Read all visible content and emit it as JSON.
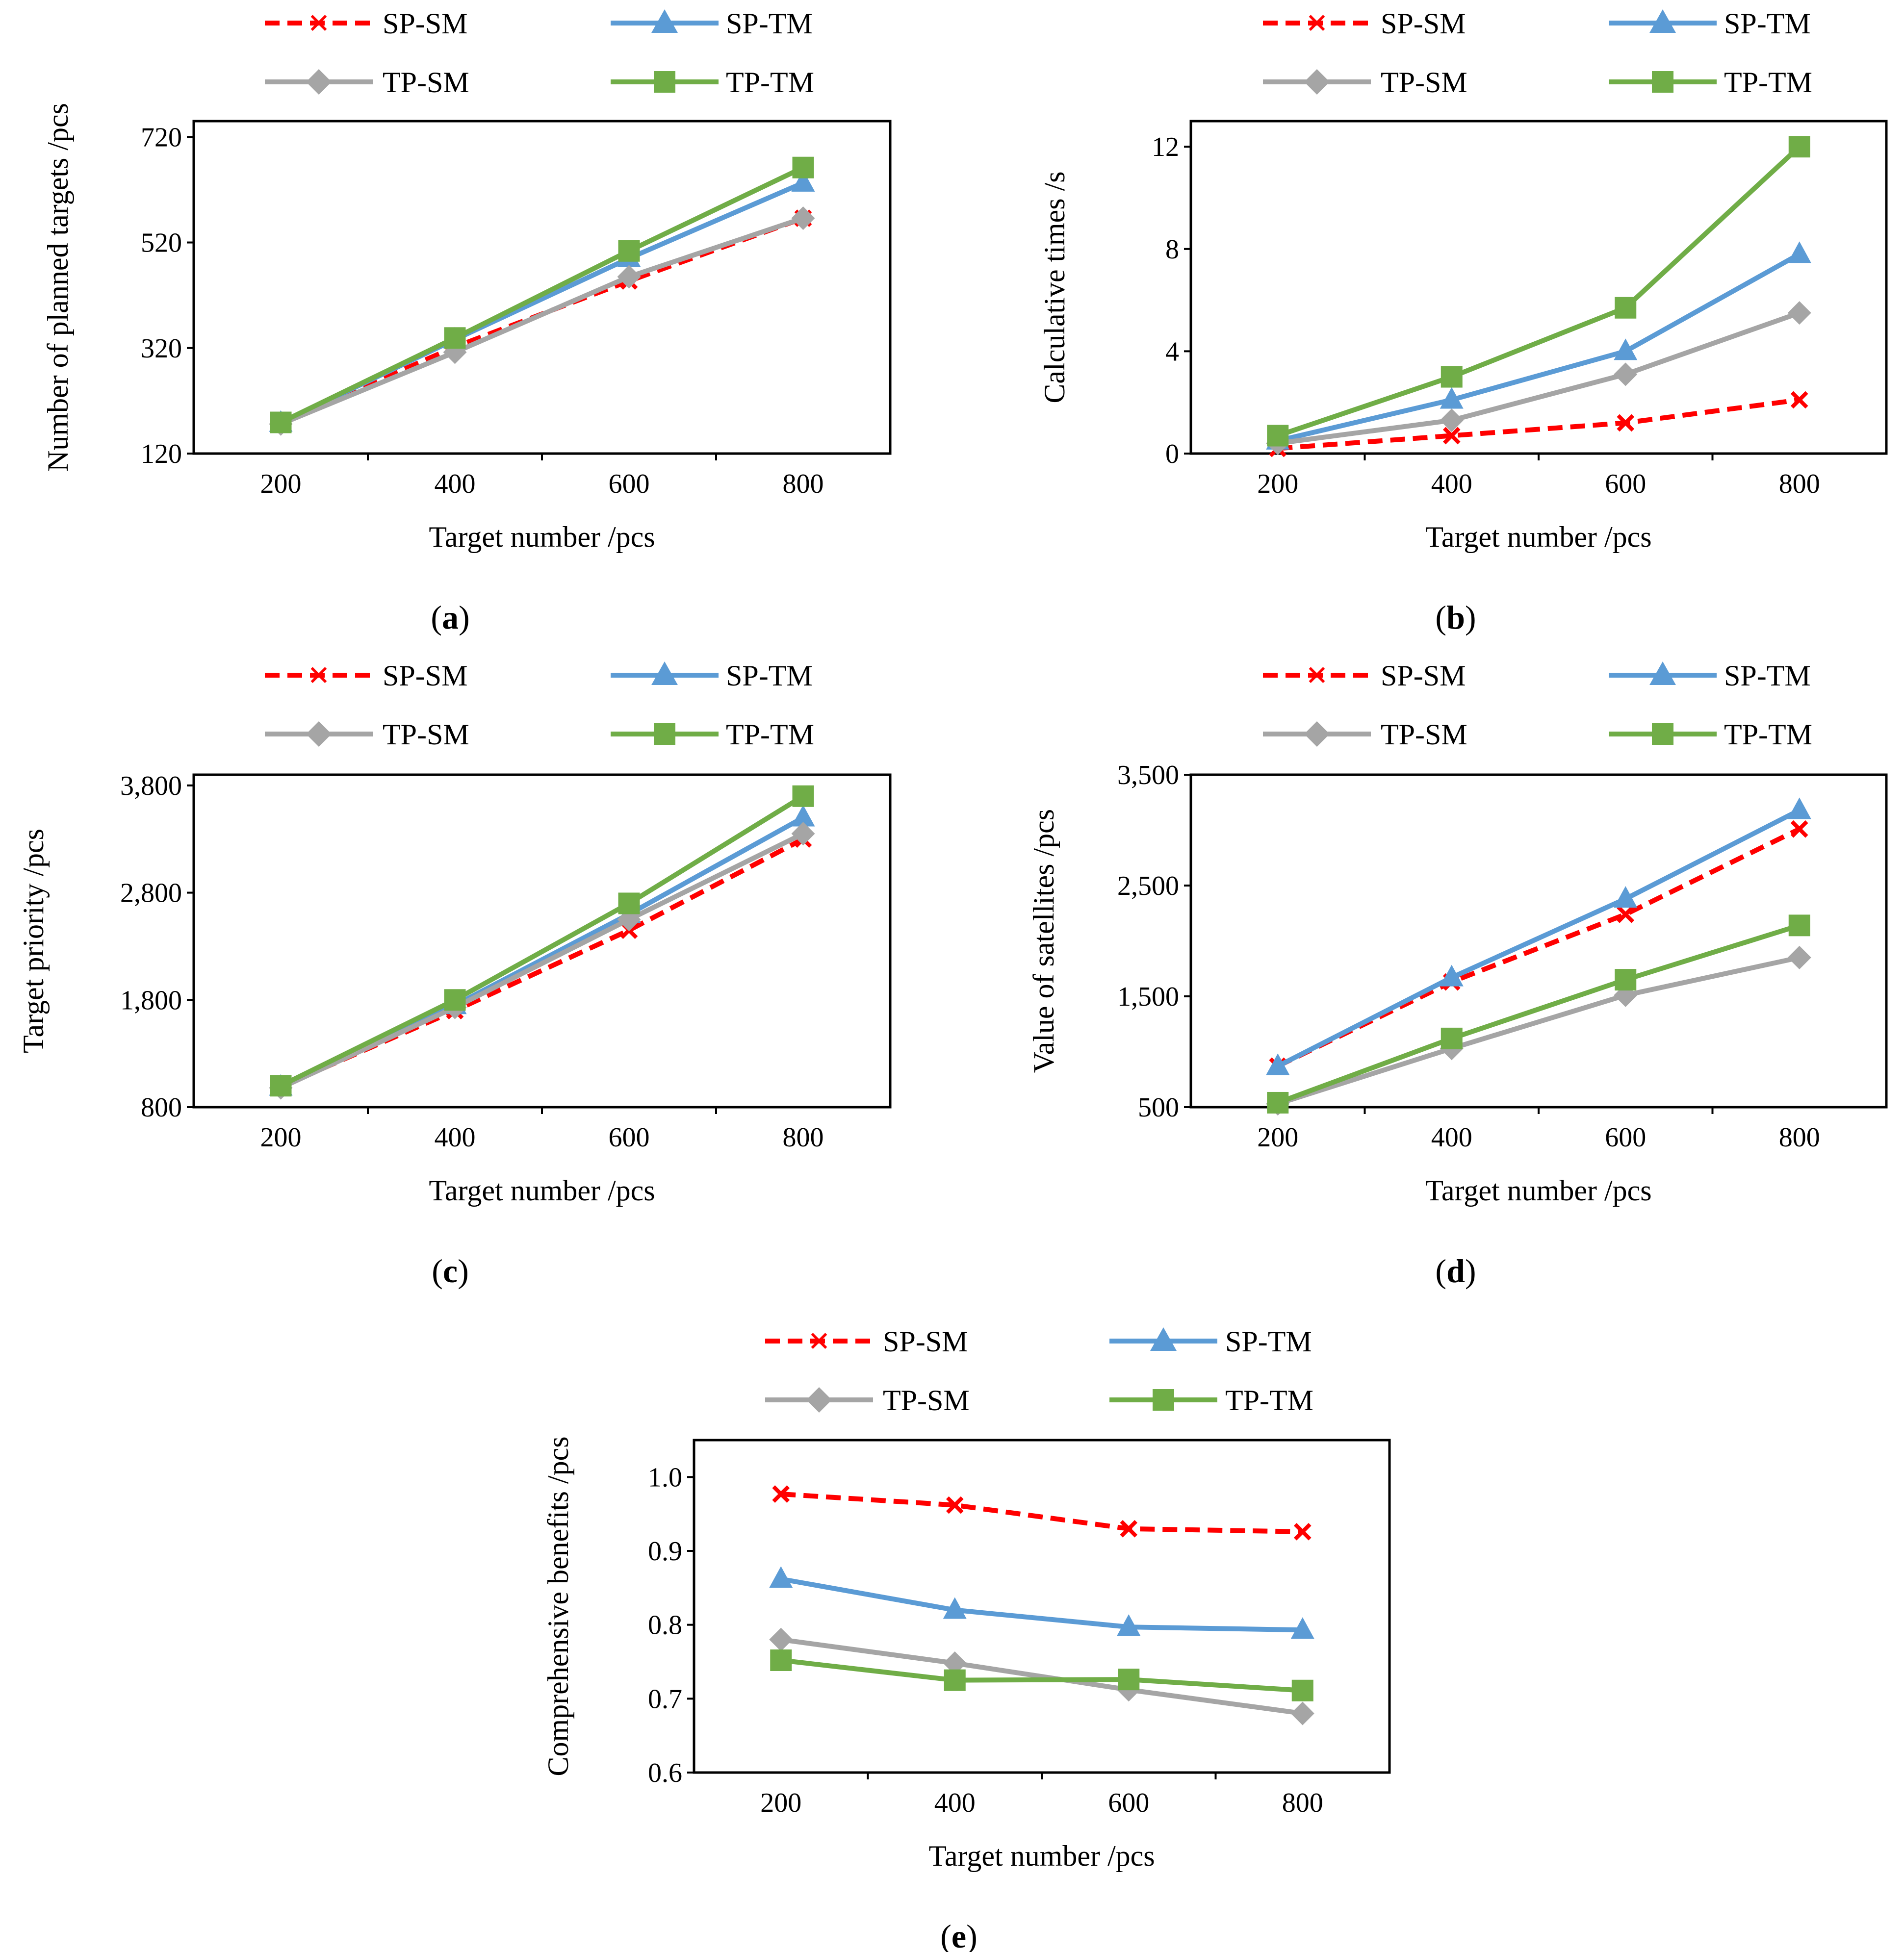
{
  "series_styles": {
    "SP-SM": {
      "color": "#FF0000",
      "dash": true,
      "marker": "x"
    },
    "SP-TM": {
      "color": "#5B9BD5",
      "dash": false,
      "marker": "triangle"
    },
    "TP-SM": {
      "color": "#A5A5A5",
      "dash": false,
      "marker": "diamond"
    },
    "TP-TM": {
      "color": "#70AD47",
      "dash": false,
      "marker": "square"
    }
  },
  "chart_data": [
    {
      "id": "a",
      "panel_label": "a",
      "type": "line",
      "xlabel": "Target number /pcs",
      "ylabel": "Number of planned targets /pcs",
      "x": [
        200,
        400,
        600,
        800
      ],
      "x_tick_labels": [
        "200",
        "400",
        "600",
        "800"
      ],
      "ylim": [
        120,
        750
      ],
      "y_ticks": [
        120,
        320,
        520,
        720
      ],
      "y_tick_labels": [
        "120",
        "320",
        "520",
        "720"
      ],
      "series": [
        {
          "name": "SP-SM",
          "values": [
            178,
            322,
            447,
            566
          ]
        },
        {
          "name": "SP-TM",
          "values": [
            178,
            336,
            490,
            633
          ]
        },
        {
          "name": "TP-SM",
          "values": [
            176,
            312,
            455,
            566
          ]
        },
        {
          "name": "TP-TM",
          "values": [
            179,
            339,
            504,
            662
          ]
        }
      ]
    },
    {
      "id": "b",
      "panel_label": "b",
      "type": "line",
      "xlabel": "Target number /pcs",
      "ylabel": "Calculative times /s",
      "x": [
        200,
        400,
        600,
        800
      ],
      "x_tick_labels": [
        "200",
        "400",
        "600",
        "800"
      ],
      "ylim": [
        0,
        13
      ],
      "y_ticks": [
        0,
        4,
        8,
        12
      ],
      "y_tick_labels": [
        "0",
        "4",
        "8",
        "12"
      ],
      "series": [
        {
          "name": "SP-SM",
          "values": [
            0.2,
            0.7,
            1.2,
            2.1
          ]
        },
        {
          "name": "SP-TM",
          "values": [
            0.5,
            2.1,
            4.0,
            7.8
          ]
        },
        {
          "name": "TP-SM",
          "values": [
            0.4,
            1.3,
            3.1,
            5.5
          ]
        },
        {
          "name": "TP-TM",
          "values": [
            0.7,
            3.0,
            5.7,
            12.0
          ]
        }
      ]
    },
    {
      "id": "c",
      "panel_label": "c",
      "type": "line",
      "xlabel": "Target number /pcs",
      "ylabel": "Target priority /pcs",
      "x": [
        200,
        400,
        600,
        800
      ],
      "x_tick_labels": [
        "200",
        "400",
        "600",
        "800"
      ],
      "ylim": [
        800,
        3900
      ],
      "y_ticks": [
        800,
        1800,
        2800,
        3800
      ],
      "y_tick_labels": [
        "800",
        "1,800",
        "2,800",
        "3,800"
      ],
      "series": [
        {
          "name": "SP-SM",
          "values": [
            990,
            1700,
            2450,
            3300
          ]
        },
        {
          "name": "SP-TM",
          "values": [
            990,
            1750,
            2600,
            3500
          ]
        },
        {
          "name": "TP-SM",
          "values": [
            980,
            1730,
            2550,
            3350
          ]
        },
        {
          "name": "TP-TM",
          "values": [
            1000,
            1800,
            2700,
            3700
          ]
        }
      ]
    },
    {
      "id": "d",
      "panel_label": "d",
      "type": "line",
      "xlabel": "Target number /pcs",
      "ylabel": "Value of satellites /pcs",
      "x": [
        200,
        400,
        600,
        800
      ],
      "x_tick_labels": [
        "200",
        "400",
        "600",
        "800"
      ],
      "ylim": [
        500,
        3500
      ],
      "y_ticks": [
        500,
        1500,
        2500,
        3500
      ],
      "y_tick_labels": [
        "500",
        "1,500",
        "2,500",
        "3,500"
      ],
      "series": [
        {
          "name": "SP-SM",
          "values": [
            870,
            1630,
            2240,
            3010
          ]
        },
        {
          "name": "SP-TM",
          "values": [
            870,
            1670,
            2380,
            3180
          ]
        },
        {
          "name": "TP-SM",
          "values": [
            530,
            1030,
            1510,
            1850
          ]
        },
        {
          "name": "TP-TM",
          "values": [
            540,
            1120,
            1650,
            2140
          ]
        }
      ]
    },
    {
      "id": "e",
      "panel_label": "e",
      "type": "line",
      "xlabel": "Target number /pcs",
      "ylabel": "Comprehensive benefits /pcs",
      "x": [
        200,
        400,
        600,
        800
      ],
      "x_tick_labels": [
        "200",
        "400",
        "600",
        "800"
      ],
      "ylim": [
        0.6,
        1.05
      ],
      "y_ticks": [
        0.6,
        0.7,
        0.8,
        0.9,
        1.0
      ],
      "y_tick_labels": [
        "0.6",
        "0.7",
        "0.8",
        "0.9",
        "1.0"
      ],
      "series": [
        {
          "name": "SP-SM",
          "values": [
            0.977,
            0.962,
            0.93,
            0.926
          ]
        },
        {
          "name": "SP-TM",
          "values": [
            0.862,
            0.82,
            0.797,
            0.793
          ]
        },
        {
          "name": "TP-SM",
          "values": [
            0.78,
            0.748,
            0.712,
            0.68
          ]
        },
        {
          "name": "TP-TM",
          "values": [
            0.752,
            0.725,
            0.726,
            0.711
          ]
        }
      ]
    }
  ]
}
